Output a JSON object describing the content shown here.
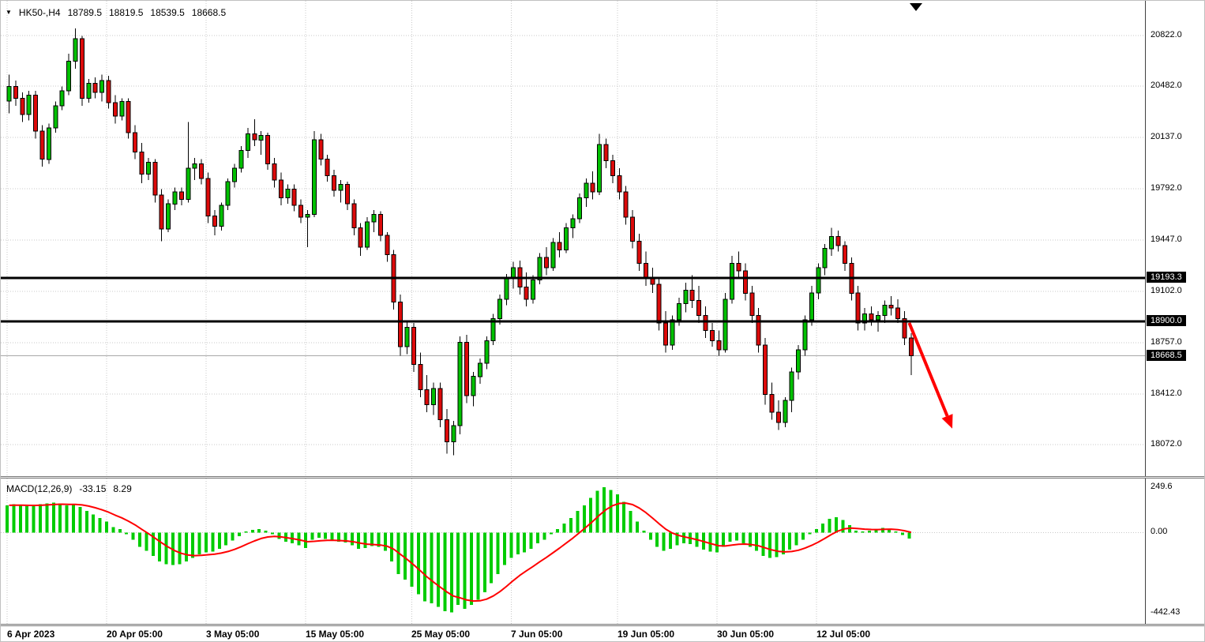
{
  "header": {
    "dropdown_icon": "▼",
    "symbol": "HK50-,H4",
    "ohlc": [
      "18789.5",
      "18819.5",
      "18539.5",
      "18668.5"
    ]
  },
  "macd": {
    "label": "MACD(12,26,9)",
    "value": "-33.15",
    "signal": "8.29"
  },
  "colors": {
    "candle_up": "#00C000",
    "candle_down": "#DC0A0A",
    "candle_border": "#000000",
    "macd_hist": "#00CC00",
    "signal_line": "#FF0000",
    "sr_line": "#000000",
    "price_line": "#A8A8A8",
    "grid": "#C8C8C8",
    "arrow": "#FF0000",
    "tag_bg": "#000000",
    "tag_fg": "#FFFFFF"
  },
  "chart_data": [
    {
      "type": "candlestick",
      "symbol": "HK50-,H4",
      "timeframe": "H4",
      "last_ohlc": {
        "open": 18789.5,
        "high": 18819.5,
        "low": 18539.5,
        "close": 18668.5
      },
      "y_ticks": [
        20822.0,
        20482.0,
        20137.0,
        19792.0,
        19447.0,
        19102.0,
        18757.0,
        18412.0,
        18072.0
      ],
      "x_ticks": [
        {
          "label": "6 Apr 2023",
          "index": 0
        },
        {
          "label": "20 Apr 05:00",
          "index": 15
        },
        {
          "label": "3 May 05:00",
          "index": 30
        },
        {
          "label": "15 May 05:00",
          "index": 45
        },
        {
          "label": "25 May 05:00",
          "index": 61
        },
        {
          "label": "7 Jun 05:00",
          "index": 76
        },
        {
          "label": "19 Jun 05:00",
          "index": 92
        },
        {
          "label": "30 Jun 05:00",
          "index": 107
        },
        {
          "label": "12 Jul 05:00",
          "index": 122
        }
      ],
      "horizontal_lines": [
        19193.3,
        18900.0
      ],
      "current_price": 18668.5,
      "axis_tags": [
        19193.3,
        18900.0,
        18668.5
      ],
      "arrow": {
        "from_index": 136,
        "from_price": 18890,
        "to_index": 142.5,
        "to_price": 18180
      },
      "candles": [
        [
          20380,
          20560,
          20300,
          20480
        ],
        [
          20480,
          20520,
          20350,
          20400
        ],
        [
          20400,
          20440,
          20240,
          20290
        ],
        [
          20290,
          20450,
          20250,
          20420
        ],
        [
          20420,
          20450,
          20130,
          20180
        ],
        [
          20180,
          20220,
          19940,
          19990
        ],
        [
          19990,
          20230,
          19960,
          20200
        ],
        [
          20200,
          20380,
          20170,
          20350
        ],
        [
          20350,
          20480,
          20320,
          20450
        ],
        [
          20450,
          20700,
          20420,
          20650
        ],
        [
          20650,
          20870,
          20600,
          20800
        ],
        [
          20800,
          20820,
          20350,
          20400
        ],
        [
          20400,
          20530,
          20370,
          20500
        ],
        [
          20500,
          20540,
          20400,
          20440
        ],
        [
          20440,
          20560,
          20380,
          20520
        ],
        [
          20520,
          20550,
          20330,
          20370
        ],
        [
          20370,
          20420,
          20230,
          20280
        ],
        [
          20280,
          20400,
          20250,
          20380
        ],
        [
          20380,
          20400,
          20130,
          20170
        ],
        [
          20170,
          20220,
          19990,
          20040
        ],
        [
          20040,
          20100,
          19830,
          19890
        ],
        [
          19890,
          20000,
          19850,
          19970
        ],
        [
          19970,
          19990,
          19700,
          19750
        ],
        [
          19750,
          19790,
          19440,
          19520
        ],
        [
          19520,
          19720,
          19500,
          19690
        ],
        [
          19690,
          19800,
          19650,
          19770
        ],
        [
          19770,
          19800,
          19680,
          19720
        ],
        [
          19720,
          20240,
          19700,
          19930
        ],
        [
          19930,
          20000,
          19850,
          19960
        ],
        [
          19960,
          19990,
          19820,
          19860
        ],
        [
          19860,
          19900,
          19560,
          19610
        ],
        [
          19610,
          19650,
          19480,
          19540
        ],
        [
          19540,
          19700,
          19510,
          19680
        ],
        [
          19680,
          19860,
          19650,
          19840
        ],
        [
          19840,
          19960,
          19800,
          19930
        ],
        [
          19930,
          20080,
          19900,
          20050
        ],
        [
          20050,
          20200,
          20000,
          20160
        ],
        [
          20160,
          20260,
          20080,
          20120
        ],
        [
          20120,
          20180,
          20020,
          20150
        ],
        [
          20150,
          20170,
          19920,
          19960
        ],
        [
          19960,
          20000,
          19800,
          19850
        ],
        [
          19850,
          19900,
          19680,
          19730
        ],
        [
          19730,
          19820,
          19690,
          19790
        ],
        [
          19790,
          19820,
          19640,
          19680
        ],
        [
          19680,
          19720,
          19560,
          19600
        ],
        [
          19600,
          19650,
          19400,
          19620
        ],
        [
          19620,
          20180,
          19600,
          20120
        ],
        [
          20120,
          20160,
          19950,
          19990
        ],
        [
          19990,
          20020,
          19840,
          19880
        ],
        [
          19880,
          19920,
          19740,
          19780
        ],
        [
          19780,
          19850,
          19700,
          19820
        ],
        [
          19820,
          19840,
          19650,
          19690
        ],
        [
          19690,
          19720,
          19480,
          19530
        ],
        [
          19530,
          19560,
          19340,
          19400
        ],
        [
          19400,
          19600,
          19380,
          19570
        ],
        [
          19570,
          19650,
          19500,
          19620
        ],
        [
          19620,
          19640,
          19440,
          19480
        ],
        [
          19480,
          19500,
          19300,
          19350
        ],
        [
          19350,
          19380,
          18980,
          19030
        ],
        [
          19030,
          19080,
          18670,
          18730
        ],
        [
          18730,
          18900,
          18680,
          18860
        ],
        [
          18860,
          18890,
          18560,
          18610
        ],
        [
          18610,
          18690,
          18390,
          18440
        ],
        [
          18440,
          18540,
          18290,
          18340
        ],
        [
          18340,
          18490,
          18270,
          18450
        ],
        [
          18450,
          18490,
          18190,
          18240
        ],
        [
          18240,
          18310,
          18010,
          18090
        ],
        [
          18090,
          18230,
          18000,
          18200
        ],
        [
          18200,
          18800,
          18140,
          18760
        ],
        [
          18760,
          18810,
          18350,
          18400
        ],
        [
          18400,
          18560,
          18330,
          18530
        ],
        [
          18530,
          18650,
          18480,
          18620
        ],
        [
          18620,
          18800,
          18580,
          18770
        ],
        [
          18770,
          18950,
          18740,
          18920
        ],
        [
          18920,
          19080,
          18880,
          19050
        ],
        [
          19050,
          19220,
          19010,
          19190
        ],
        [
          19190,
          19300,
          19120,
          19260
        ],
        [
          19260,
          19310,
          19080,
          19130
        ],
        [
          19130,
          19230,
          19000,
          19050
        ],
        [
          19050,
          19210,
          19020,
          19180
        ],
        [
          19180,
          19360,
          19150,
          19330
        ],
        [
          19330,
          19400,
          19210,
          19260
        ],
        [
          19260,
          19460,
          19240,
          19430
        ],
        [
          19430,
          19500,
          19330,
          19380
        ],
        [
          19380,
          19560,
          19360,
          19530
        ],
        [
          19530,
          19620,
          19460,
          19590
        ],
        [
          19590,
          19760,
          19560,
          19730
        ],
        [
          19730,
          19860,
          19670,
          19830
        ],
        [
          19830,
          19910,
          19720,
          19770
        ],
        [
          19770,
          20160,
          19750,
          20090
        ],
        [
          20090,
          20130,
          19930,
          19980
        ],
        [
          19980,
          20020,
          19830,
          19880
        ],
        [
          19880,
          19930,
          19720,
          19770
        ],
        [
          19770,
          19810,
          19550,
          19600
        ],
        [
          19600,
          19650,
          19390,
          19440
        ],
        [
          19440,
          19490,
          19240,
          19290
        ],
        [
          19290,
          19370,
          19140,
          19190
        ],
        [
          19190,
          19260,
          19090,
          19150
        ],
        [
          19150,
          19200,
          18840,
          18890
        ],
        [
          18890,
          18970,
          18690,
          18740
        ],
        [
          18740,
          18940,
          18710,
          18910
        ],
        [
          18910,
          19060,
          18870,
          19020
        ],
        [
          19020,
          19160,
          18960,
          19110
        ],
        [
          19110,
          19210,
          18990,
          19040
        ],
        [
          19040,
          19140,
          18890,
          18940
        ],
        [
          18940,
          19000,
          18790,
          18840
        ],
        [
          18840,
          18890,
          18730,
          18770
        ],
        [
          18770,
          18840,
          18670,
          18710
        ],
        [
          18710,
          19090,
          18690,
          19050
        ],
        [
          19050,
          19340,
          19020,
          19290
        ],
        [
          19290,
          19370,
          19190,
          19240
        ],
        [
          19240,
          19290,
          19040,
          19090
        ],
        [
          19090,
          19140,
          18890,
          18940
        ],
        [
          18940,
          18990,
          18690,
          18740
        ],
        [
          18740,
          18790,
          18340,
          18410
        ],
        [
          18410,
          18490,
          18240,
          18290
        ],
        [
          18290,
          18370,
          18170,
          18220
        ],
        [
          18220,
          18390,
          18190,
          18370
        ],
        [
          18370,
          18590,
          18290,
          18560
        ],
        [
          18560,
          18740,
          18510,
          18710
        ],
        [
          18710,
          18940,
          18670,
          18910
        ],
        [
          18910,
          19140,
          18870,
          19090
        ],
        [
          19090,
          19290,
          19050,
          19260
        ],
        [
          19260,
          19420,
          19210,
          19390
        ],
        [
          19390,
          19530,
          19340,
          19470
        ],
        [
          19470,
          19510,
          19370,
          19410
        ],
        [
          19410,
          19440,
          19240,
          19290
        ],
        [
          19290,
          19330,
          19040,
          19090
        ],
        [
          19090,
          19140,
          18840,
          18890
        ],
        [
          18890,
          18990,
          18840,
          18950
        ],
        [
          18950,
          19000,
          18870,
          18910
        ],
        [
          18910,
          18970,
          18830,
          18940
        ],
        [
          18940,
          19040,
          18890,
          19010
        ],
        [
          19010,
          19070,
          18940,
          18990
        ],
        [
          18990,
          19050,
          18890,
          18920
        ],
        [
          18920,
          18970,
          18740,
          18790
        ],
        [
          18789.5,
          18819.5,
          18539.5,
          18668.5
        ]
      ]
    },
    {
      "type": "bar",
      "title": "MACD(12,26,9)",
      "macd_value": -33.15,
      "signal_value": 8.29,
      "y_ticks": [
        {
          "label": "249.6",
          "value": 249.6
        },
        {
          "label": "0.00",
          "value": 0
        },
        {
          "label": "-442.43",
          "value": -442.43
        }
      ],
      "signal_smoothing": "EMA9 of histogram",
      "histogram": [
        150,
        155,
        150,
        145,
        150,
        155,
        160,
        165,
        160,
        150,
        155,
        140,
        120,
        100,
        80,
        60,
        30,
        20,
        -10,
        -40,
        -80,
        -100,
        -130,
        -160,
        -175,
        -180,
        -175,
        -160,
        -140,
        -120,
        -110,
        -105,
        -90,
        -70,
        -45,
        -20,
        5,
        15,
        20,
        10,
        -10,
        -35,
        -50,
        -60,
        -70,
        -85,
        -40,
        -30,
        -35,
        -45,
        -50,
        -55,
        -70,
        -90,
        -85,
        -75,
        -80,
        -100,
        -160,
        -230,
        -260,
        -300,
        -340,
        -380,
        -390,
        -410,
        -435,
        -440,
        -400,
        -420,
        -400,
        -370,
        -330,
        -280,
        -230,
        -180,
        -140,
        -120,
        -110,
        -90,
        -60,
        -40,
        -10,
        20,
        50,
        80,
        120,
        150,
        190,
        230,
        250,
        235,
        210,
        170,
        120,
        60,
        10,
        -40,
        -80,
        -100,
        -90,
        -70,
        -60,
        -65,
        -80,
        -95,
        -105,
        -110,
        -80,
        -50,
        -45,
        -60,
        -80,
        -100,
        -130,
        -140,
        -135,
        -120,
        -95,
        -70,
        -40,
        -10,
        20,
        50,
        75,
        85,
        70,
        40,
        10,
        5,
        10,
        15,
        25,
        20,
        5,
        -15,
        -33.15
      ]
    }
  ]
}
